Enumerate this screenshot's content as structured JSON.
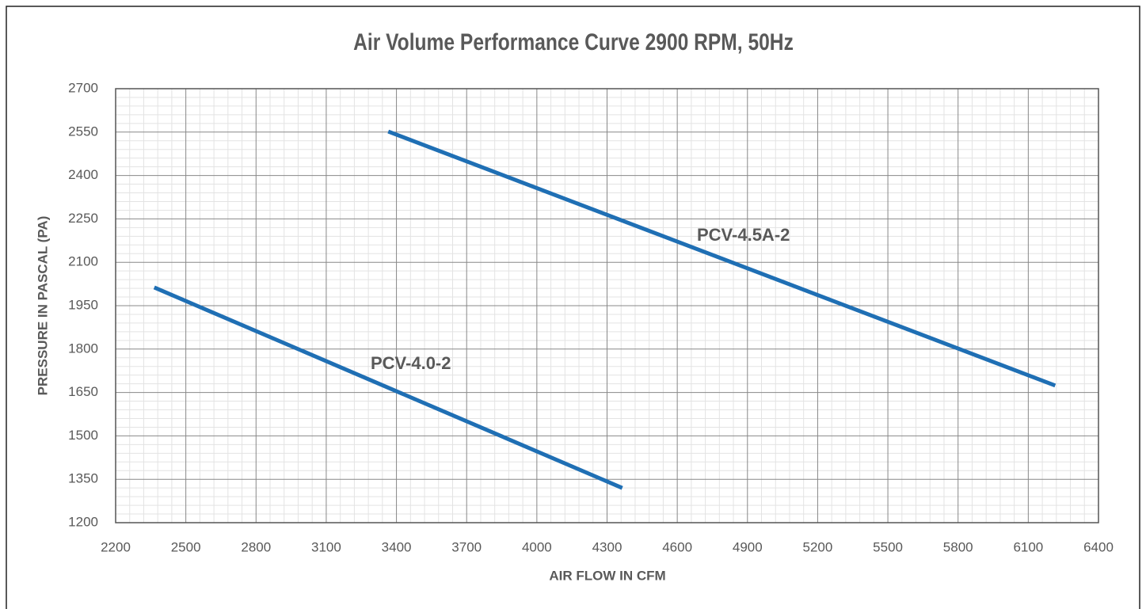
{
  "chart_data": {
    "type": "line",
    "title": "Air Volume Performance Curve 2900 RPM, 50Hz",
    "x_label": "AIR FLOW IN CFM",
    "y_label": "PRESSURE IN PASCAL (PA)",
    "series": [
      {
        "name": "PCV-4.0-2",
        "color": "#1f6fb4",
        "x": [
          2365,
          4365
        ],
        "values": [
          2013,
          1320
        ]
      },
      {
        "name": "PCV-4.5A-2",
        "color": "#1f6fb4",
        "x": [
          3365,
          6215
        ],
        "values": [
          2552,
          1674
        ]
      }
    ],
    "xlim": [
      2200,
      6400
    ],
    "xticks": [
      2200,
      2500,
      2800,
      3100,
      3400,
      3700,
      4000,
      4300,
      4600,
      4900,
      5200,
      5500,
      5800,
      6100,
      6400
    ],
    "ylim": [
      1200,
      2700
    ],
    "yticks": [
      1200,
      1350,
      1500,
      1650,
      1800,
      1950,
      2100,
      2250,
      2400,
      2550,
      2700
    ],
    "grid": true
  }
}
